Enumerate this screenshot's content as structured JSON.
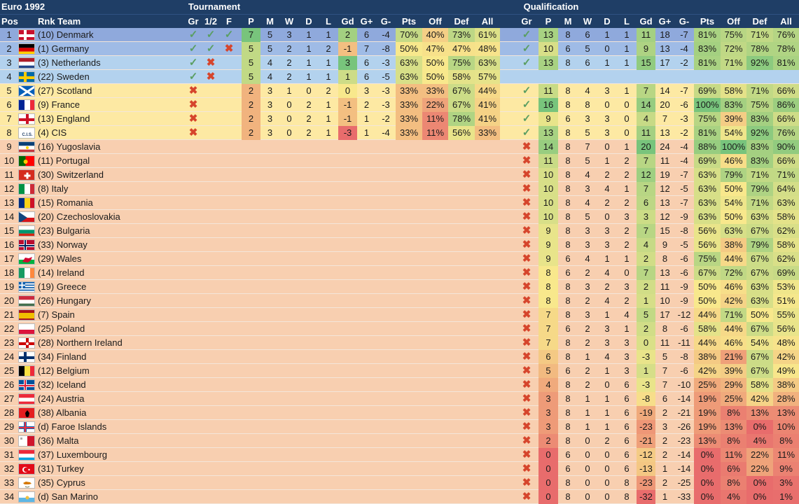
{
  "header": {
    "title": "Euro 1992",
    "tournament": "Tournament",
    "qualification": "Qualification",
    "cols_left": [
      "Pos",
      "Rnk Team"
    ],
    "cols_tour": [
      "Gr",
      "1/2",
      "F",
      "P",
      "M",
      "W",
      "D",
      "L",
      "Gd",
      "G+",
      "G-",
      "Pts",
      "Off",
      "Def",
      "All"
    ],
    "cols_qual": [
      "Gr",
      "P",
      "M",
      "W",
      "D",
      "L",
      "Gd",
      "G+",
      "G-",
      "Pts",
      "Off",
      "Def",
      "All"
    ]
  },
  "colors": {
    "header_bg": "#1f3e66",
    "winner_row": "#8fa9dc",
    "final_row": "#9fbbe6",
    "semi_row": "#b3d2ee",
    "group_row": "#fde9a3",
    "nq_row": "#f8cfb0",
    "tick": "#5a9e62",
    "cross": "#d6452c"
  },
  "icons": {
    "tick": "✓",
    "cross": "✖"
  },
  "rows": [
    {
      "pos": "1",
      "rank": "(10)",
      "team": "Denmark",
      "flag": "denmark",
      "stage": "win",
      "gr": "t",
      "sf": "t",
      "f": "t",
      "P": "7",
      "M": "5",
      "W": "3",
      "D": "1",
      "L": "1",
      "Gd": "2",
      "Gp": "6",
      "Gm": "-4",
      "Pts": "70%",
      "Off": "40%",
      "Def": "73%",
      "All": "61%",
      "qgr": "t",
      "qP": "13",
      "qM": "8",
      "qW": "6",
      "qD": "1",
      "qL": "1",
      "qGd": "11",
      "qGp": "18",
      "qGm": "-7",
      "qPts": "81%",
      "qOff": "75%",
      "qDef": "71%",
      "qAll": "76%"
    },
    {
      "pos": "2",
      "rank": "(1)",
      "team": "Germany",
      "flag": "germany",
      "stage": "final",
      "gr": "t",
      "sf": "t",
      "f": "x",
      "P": "5",
      "M": "5",
      "W": "2",
      "D": "1",
      "L": "2",
      "Gd": "-1",
      "Gp": "7",
      "Gm": "-8",
      "Pts": "50%",
      "Off": "47%",
      "Def": "47%",
      "All": "48%",
      "qgr": "t",
      "qP": "10",
      "qM": "6",
      "qW": "5",
      "qD": "0",
      "qL": "1",
      "qGd": "9",
      "qGp": "13",
      "qGm": "-4",
      "qPts": "83%",
      "qOff": "72%",
      "qDef": "78%",
      "qAll": "78%"
    },
    {
      "pos": "3",
      "rank": "(3)",
      "team": "Netherlands",
      "flag": "netherlands",
      "stage": "semi",
      "gr": "t",
      "sf": "x",
      "f": "",
      "P": "5",
      "M": "4",
      "W": "2",
      "D": "1",
      "L": "1",
      "Gd": "3",
      "Gp": "6",
      "Gm": "-3",
      "Pts": "63%",
      "Off": "50%",
      "Def": "75%",
      "All": "63%",
      "qgr": "t",
      "qP": "13",
      "qM": "8",
      "qW": "6",
      "qD": "1",
      "qL": "1",
      "qGd": "15",
      "qGp": "17",
      "qGm": "-2",
      "qPts": "81%",
      "qOff": "71%",
      "qDef": "92%",
      "qAll": "81%"
    },
    {
      "pos": "4",
      "rank": "(22)",
      "team": "Sweden",
      "flag": "sweden",
      "stage": "semi",
      "gr": "t",
      "sf": "x",
      "f": "",
      "P": "5",
      "M": "4",
      "W": "2",
      "D": "1",
      "L": "1",
      "Gd": "1",
      "Gp": "6",
      "Gm": "-5",
      "Pts": "63%",
      "Off": "50%",
      "Def": "58%",
      "All": "57%",
      "qgr": "",
      "qP": "",
      "qM": "",
      "qW": "",
      "qD": "",
      "qL": "",
      "qGd": "",
      "qGp": "",
      "qGm": "",
      "qPts": "",
      "qOff": "",
      "qDef": "",
      "qAll": ""
    },
    {
      "pos": "5",
      "rank": "(27)",
      "team": "Scotland",
      "flag": "scotland",
      "stage": "group",
      "gr": "x",
      "sf": "",
      "f": "",
      "P": "2",
      "M": "3",
      "W": "1",
      "D": "0",
      "L": "2",
      "Gd": "0",
      "Gp": "3",
      "Gm": "-3",
      "Pts": "33%",
      "Off": "33%",
      "Def": "67%",
      "All": "44%",
      "qgr": "t",
      "qP": "11",
      "qM": "8",
      "qW": "4",
      "qD": "3",
      "qL": "1",
      "qGd": "7",
      "qGp": "14",
      "qGm": "-7",
      "qPts": "69%",
      "qOff": "58%",
      "qDef": "71%",
      "qAll": "66%"
    },
    {
      "pos": "6",
      "rank": "(9)",
      "team": "France",
      "flag": "france",
      "stage": "group",
      "gr": "x",
      "sf": "",
      "f": "",
      "P": "2",
      "M": "3",
      "W": "0",
      "D": "2",
      "L": "1",
      "Gd": "-1",
      "Gp": "2",
      "Gm": "-3",
      "Pts": "33%",
      "Off": "22%",
      "Def": "67%",
      "All": "41%",
      "qgr": "t",
      "qP": "16",
      "qM": "8",
      "qW": "8",
      "qD": "0",
      "qL": "0",
      "qGd": "14",
      "qGp": "20",
      "qGm": "-6",
      "qPts": "100%",
      "qOff": "83%",
      "qDef": "75%",
      "qAll": "86%"
    },
    {
      "pos": "7",
      "rank": "(13)",
      "team": "England",
      "flag": "england",
      "stage": "group",
      "gr": "x",
      "sf": "",
      "f": "",
      "P": "2",
      "M": "3",
      "W": "0",
      "D": "2",
      "L": "1",
      "Gd": "-1",
      "Gp": "1",
      "Gm": "-2",
      "Pts": "33%",
      "Off": "11%",
      "Def": "78%",
      "All": "41%",
      "qgr": "t",
      "qP": "9",
      "qM": "6",
      "qW": "3",
      "qD": "3",
      "qL": "0",
      "qGd": "4",
      "qGp": "7",
      "qGm": "-3",
      "qPts": "75%",
      "qOff": "39%",
      "qDef": "83%",
      "qAll": "66%"
    },
    {
      "pos": "8",
      "rank": "(4)",
      "team": "CIS",
      "flag": "cis",
      "stage": "group",
      "gr": "x",
      "sf": "",
      "f": "",
      "P": "2",
      "M": "3",
      "W": "0",
      "D": "2",
      "L": "1",
      "Gd": "-3",
      "Gp": "1",
      "Gm": "-4",
      "Pts": "33%",
      "Off": "11%",
      "Def": "56%",
      "All": "33%",
      "qgr": "t",
      "qP": "13",
      "qM": "8",
      "qW": "5",
      "qD": "3",
      "qL": "0",
      "qGd": "11",
      "qGp": "13",
      "qGm": "-2",
      "qPts": "81%",
      "qOff": "54%",
      "qDef": "92%",
      "qAll": "76%"
    },
    {
      "pos": "9",
      "rank": "(16)",
      "team": "Yugoslavia",
      "flag": "yugoslavia",
      "stage": "nq",
      "qgr": "x",
      "qP": "14",
      "qM": "8",
      "qW": "7",
      "qD": "0",
      "qL": "1",
      "qGd": "20",
      "qGp": "24",
      "qGm": "-4",
      "qPts": "88%",
      "qOff": "100%",
      "qDef": "83%",
      "qAll": "90%"
    },
    {
      "pos": "10",
      "rank": "(11)",
      "team": "Portugal",
      "flag": "portugal",
      "stage": "nq",
      "qgr": "x",
      "qP": "11",
      "qM": "8",
      "qW": "5",
      "qD": "1",
      "qL": "2",
      "qGd": "7",
      "qGp": "11",
      "qGm": "-4",
      "qPts": "69%",
      "qOff": "46%",
      "qDef": "83%",
      "qAll": "66%"
    },
    {
      "pos": "11",
      "rank": "(30)",
      "team": "Switzerland",
      "flag": "switzerland",
      "stage": "nq",
      "qgr": "x",
      "qP": "10",
      "qM": "8",
      "qW": "4",
      "qD": "2",
      "qL": "2",
      "qGd": "12",
      "qGp": "19",
      "qGm": "-7",
      "qPts": "63%",
      "qOff": "79%",
      "qDef": "71%",
      "qAll": "71%"
    },
    {
      "pos": "12",
      "rank": "(8)",
      "team": "Italy",
      "flag": "italy",
      "stage": "nq",
      "qgr": "x",
      "qP": "10",
      "qM": "8",
      "qW": "3",
      "qD": "4",
      "qL": "1",
      "qGd": "7",
      "qGp": "12",
      "qGm": "-5",
      "qPts": "63%",
      "qOff": "50%",
      "qDef": "79%",
      "qAll": "64%"
    },
    {
      "pos": "13",
      "rank": "(15)",
      "team": "Romania",
      "flag": "romania",
      "stage": "nq",
      "qgr": "x",
      "qP": "10",
      "qM": "8",
      "qW": "4",
      "qD": "2",
      "qL": "2",
      "qGd": "6",
      "qGp": "13",
      "qGm": "-7",
      "qPts": "63%",
      "qOff": "54%",
      "qDef": "71%",
      "qAll": "63%"
    },
    {
      "pos": "14",
      "rank": "(20)",
      "team": "Czechoslovakia",
      "flag": "czechoslovakia",
      "stage": "nq",
      "qgr": "x",
      "qP": "10",
      "qM": "8",
      "qW": "5",
      "qD": "0",
      "qL": "3",
      "qGd": "3",
      "qGp": "12",
      "qGm": "-9",
      "qPts": "63%",
      "qOff": "50%",
      "qDef": "63%",
      "qAll": "58%"
    },
    {
      "pos": "15",
      "rank": "(23)",
      "team": "Bulgaria",
      "flag": "bulgaria",
      "stage": "nq",
      "qgr": "x",
      "qP": "9",
      "qM": "8",
      "qW": "3",
      "qD": "3",
      "qL": "2",
      "qGd": "7",
      "qGp": "15",
      "qGm": "-8",
      "qPts": "56%",
      "qOff": "63%",
      "qDef": "67%",
      "qAll": "62%"
    },
    {
      "pos": "16",
      "rank": "(33)",
      "team": "Norway",
      "flag": "norway",
      "stage": "nq",
      "qgr": "x",
      "qP": "9",
      "qM": "8",
      "qW": "3",
      "qD": "3",
      "qL": "2",
      "qGd": "4",
      "qGp": "9",
      "qGm": "-5",
      "qPts": "56%",
      "qOff": "38%",
      "qDef": "79%",
      "qAll": "58%"
    },
    {
      "pos": "17",
      "rank": "(29)",
      "team": "Wales",
      "flag": "wales",
      "stage": "nq",
      "qgr": "x",
      "qP": "9",
      "qM": "6",
      "qW": "4",
      "qD": "1",
      "qL": "1",
      "qGd": "2",
      "qGp": "8",
      "qGm": "-6",
      "qPts": "75%",
      "qOff": "44%",
      "qDef": "67%",
      "qAll": "62%"
    },
    {
      "pos": "18",
      "rank": "(14)",
      "team": "Ireland",
      "flag": "ireland",
      "stage": "nq",
      "qgr": "x",
      "qP": "8",
      "qM": "6",
      "qW": "2",
      "qD": "4",
      "qL": "0",
      "qGd": "7",
      "qGp": "13",
      "qGm": "-6",
      "qPts": "67%",
      "qOff": "72%",
      "qDef": "67%",
      "qAll": "69%"
    },
    {
      "pos": "19",
      "rank": "(19)",
      "team": "Greece",
      "flag": "greece",
      "stage": "nq",
      "qgr": "x",
      "qP": "8",
      "qM": "8",
      "qW": "3",
      "qD": "2",
      "qL": "3",
      "qGd": "2",
      "qGp": "11",
      "qGm": "-9",
      "qPts": "50%",
      "qOff": "46%",
      "qDef": "63%",
      "qAll": "53%"
    },
    {
      "pos": "20",
      "rank": "(26)",
      "team": "Hungary",
      "flag": "hungary",
      "stage": "nq",
      "qgr": "x",
      "qP": "8",
      "qM": "8",
      "qW": "2",
      "qD": "4",
      "qL": "2",
      "qGd": "1",
      "qGp": "10",
      "qGm": "-9",
      "qPts": "50%",
      "qOff": "42%",
      "qDef": "63%",
      "qAll": "51%"
    },
    {
      "pos": "21",
      "rank": "(7)",
      "team": "Spain",
      "flag": "spain",
      "stage": "nq",
      "qgr": "x",
      "qP": "7",
      "qM": "8",
      "qW": "3",
      "qD": "1",
      "qL": "4",
      "qGd": "5",
      "qGp": "17",
      "qGm": "-12",
      "qPts": "44%",
      "qOff": "71%",
      "qDef": "50%",
      "qAll": "55%"
    },
    {
      "pos": "22",
      "rank": "(25)",
      "team": "Poland",
      "flag": "poland",
      "stage": "nq",
      "qgr": "x",
      "qP": "7",
      "qM": "6",
      "qW": "2",
      "qD": "3",
      "qL": "1",
      "qGd": "2",
      "qGp": "8",
      "qGm": "-6",
      "qPts": "58%",
      "qOff": "44%",
      "qDef": "67%",
      "qAll": "56%"
    },
    {
      "pos": "23",
      "rank": "(28)",
      "team": "Northern Ireland",
      "flag": "northern-ireland",
      "stage": "nq",
      "qgr": "x",
      "qP": "7",
      "qM": "8",
      "qW": "2",
      "qD": "3",
      "qL": "3",
      "qGd": "0",
      "qGp": "11",
      "qGm": "-11",
      "qPts": "44%",
      "qOff": "46%",
      "qDef": "54%",
      "qAll": "48%"
    },
    {
      "pos": "24",
      "rank": "(34)",
      "team": "Finland",
      "flag": "finland",
      "stage": "nq",
      "qgr": "x",
      "qP": "6",
      "qM": "8",
      "qW": "1",
      "qD": "4",
      "qL": "3",
      "qGd": "-3",
      "qGp": "5",
      "qGm": "-8",
      "qPts": "38%",
      "qOff": "21%",
      "qDef": "67%",
      "qAll": "42%"
    },
    {
      "pos": "25",
      "rank": "(12)",
      "team": "Belgium",
      "flag": "belgium",
      "stage": "nq",
      "qgr": "x",
      "qP": "5",
      "qM": "6",
      "qW": "2",
      "qD": "1",
      "qL": "3",
      "qGd": "1",
      "qGp": "7",
      "qGm": "-6",
      "qPts": "42%",
      "qOff": "39%",
      "qDef": "67%",
      "qAll": "49%"
    },
    {
      "pos": "26",
      "rank": "(32)",
      "team": "Iceland",
      "flag": "iceland",
      "stage": "nq",
      "qgr": "x",
      "qP": "4",
      "qM": "8",
      "qW": "2",
      "qD": "0",
      "qL": "6",
      "qGd": "-3",
      "qGp": "7",
      "qGm": "-10",
      "qPts": "25%",
      "qOff": "29%",
      "qDef": "58%",
      "qAll": "38%"
    },
    {
      "pos": "27",
      "rank": "(24)",
      "team": "Austria",
      "flag": "austria",
      "stage": "nq",
      "qgr": "x",
      "qP": "3",
      "qM": "8",
      "qW": "1",
      "qD": "1",
      "qL": "6",
      "qGd": "-8",
      "qGp": "6",
      "qGm": "-14",
      "qPts": "19%",
      "qOff": "25%",
      "qDef": "42%",
      "qAll": "28%"
    },
    {
      "pos": "28",
      "rank": "(38)",
      "team": "Albania",
      "flag": "albania",
      "stage": "nq",
      "qgr": "x",
      "qP": "3",
      "qM": "8",
      "qW": "1",
      "qD": "1",
      "qL": "6",
      "qGd": "-19",
      "qGp": "2",
      "qGm": "-21",
      "qPts": "19%",
      "qOff": "8%",
      "qDef": "13%",
      "qAll": "13%"
    },
    {
      "pos": "29",
      "rank": "(d)",
      "team": "Faroe Islands",
      "flag": "faroe-islands",
      "stage": "nq",
      "qgr": "x",
      "qP": "3",
      "qM": "8",
      "qW": "1",
      "qD": "1",
      "qL": "6",
      "qGd": "-23",
      "qGp": "3",
      "qGm": "-26",
      "qPts": "19%",
      "qOff": "13%",
      "qDef": "0%",
      "qAll": "10%"
    },
    {
      "pos": "30",
      "rank": "(36)",
      "team": "Malta",
      "flag": "malta",
      "stage": "nq",
      "qgr": "x",
      "qP": "2",
      "qM": "8",
      "qW": "0",
      "qD": "2",
      "qL": "6",
      "qGd": "-21",
      "qGp": "2",
      "qGm": "-23",
      "qPts": "13%",
      "qOff": "8%",
      "qDef": "4%",
      "qAll": "8%"
    },
    {
      "pos": "31",
      "rank": "(37)",
      "team": "Luxembourg",
      "flag": "luxembourg",
      "stage": "nq",
      "qgr": "x",
      "qP": "0",
      "qM": "6",
      "qW": "0",
      "qD": "0",
      "qL": "6",
      "qGd": "-12",
      "qGp": "2",
      "qGm": "-14",
      "qPts": "0%",
      "qOff": "11%",
      "qDef": "22%",
      "qAll": "11%"
    },
    {
      "pos": "32",
      "rank": "(31)",
      "team": "Turkey",
      "flag": "turkey",
      "stage": "nq",
      "qgr": "x",
      "qP": "0",
      "qM": "6",
      "qW": "0",
      "qD": "0",
      "qL": "6",
      "qGd": "-13",
      "qGp": "1",
      "qGm": "-14",
      "qPts": "0%",
      "qOff": "6%",
      "qDef": "22%",
      "qAll": "9%"
    },
    {
      "pos": "33",
      "rank": "(35)",
      "team": "Cyprus",
      "flag": "cyprus",
      "stage": "nq",
      "qgr": "x",
      "qP": "0",
      "qM": "8",
      "qW": "0",
      "qD": "0",
      "qL": "8",
      "qGd": "-23",
      "qGp": "2",
      "qGm": "-25",
      "qPts": "0%",
      "qOff": "8%",
      "qDef": "0%",
      "qAll": "3%"
    },
    {
      "pos": "34",
      "rank": "(d)",
      "team": "San Marino",
      "flag": "san-marino",
      "stage": "nq",
      "qgr": "x",
      "qP": "0",
      "qM": "8",
      "qW": "0",
      "qD": "0",
      "qL": "8",
      "qGd": "-32",
      "qGp": "1",
      "qGm": "-33",
      "qPts": "0%",
      "qOff": "4%",
      "qDef": "0%",
      "qAll": "1%"
    }
  ]
}
